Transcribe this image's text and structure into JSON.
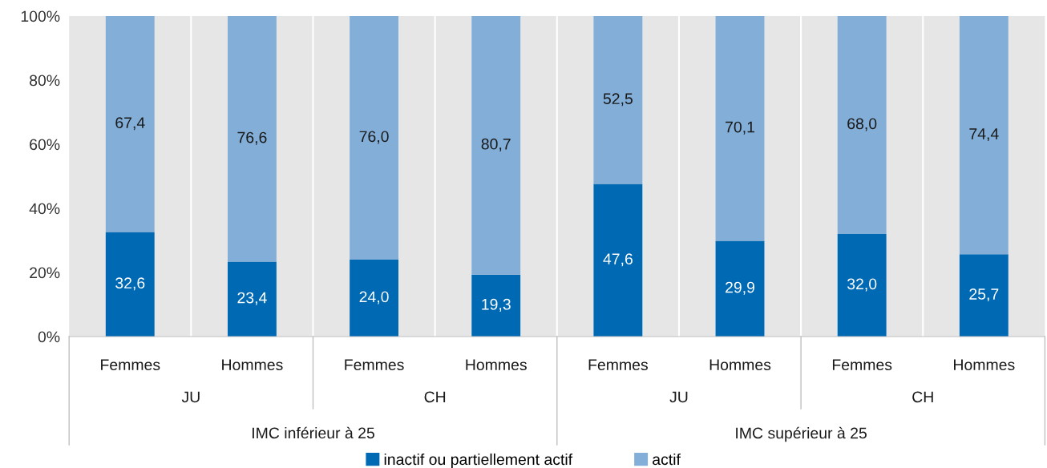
{
  "chart_data": {
    "type": "bar",
    "stacked": true,
    "categories": [
      "Femmes",
      "Hommes",
      "Femmes",
      "Hommes",
      "Femmes",
      "Hommes",
      "Femmes",
      "Hommes"
    ],
    "series": [
      {
        "name": "inactif ou partiellement actif",
        "color": "#0069b4",
        "values": [
          32.6,
          23.4,
          24.0,
          19.3,
          47.6,
          29.9,
          32.0,
          25.7
        ],
        "value_labels": [
          "32,6",
          "23,4",
          "24,0",
          "19,3",
          "47,6",
          "29,9",
          "32,0",
          "25,7"
        ]
      },
      {
        "name": "actif",
        "color": "#82aed8",
        "values": [
          67.4,
          76.6,
          76.0,
          80.7,
          52.5,
          70.1,
          68.0,
          74.4
        ],
        "value_labels": [
          "67,4",
          "76,6",
          "76,0",
          "80,7",
          "52,5",
          "70,1",
          "68,0",
          "74,4"
        ]
      }
    ],
    "ylim": [
      0,
      100
    ],
    "yticks": [
      {
        "value": 0,
        "label": "0%"
      },
      {
        "value": 20,
        "label": "20%"
      },
      {
        "value": 40,
        "label": "40%"
      },
      {
        "value": 60,
        "label": "60%"
      },
      {
        "value": 80,
        "label": "80%"
      },
      {
        "value": 100,
        "label": "100%"
      }
    ],
    "annotations": [
      "JU",
      "CH",
      "JU",
      "CH",
      "IMC inférieur à 25",
      "IMC supérieur à 25"
    ],
    "grid": "x",
    "legend": "bottom"
  }
}
